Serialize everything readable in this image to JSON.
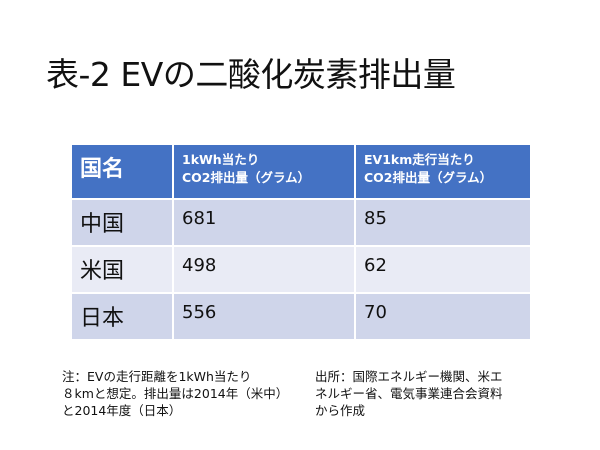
{
  "title": "表-2 EVの二酸化炭素排出量",
  "table": {
    "headers": [
      {
        "lines": [
          "国名"
        ]
      },
      {
        "lines": [
          "1kWh当たり",
          "CO2排出量（グラム）"
        ]
      },
      {
        "lines": [
          "EV1km走行当たり",
          "CO2排出量（グラム）"
        ]
      }
    ],
    "rows": [
      [
        "中国",
        "681",
        "85"
      ],
      [
        "米国",
        "498",
        "62"
      ],
      [
        "日本",
        "556",
        "70"
      ]
    ]
  },
  "note_left": [
    "注：EVの走行距離を1kWh当たり",
    "８kmと想定。排出量は2014年（米中）",
    "と2014年度（日本）"
  ],
  "note_right": [
    "出所：国際エネルギー機関、米エ",
    "ネルギー省、電気事業連合会資料",
    "から作成"
  ],
  "colors": {
    "header": "#4472c4",
    "row_odd": "#cfd5ea",
    "row_even": "#e9ebf5"
  }
}
